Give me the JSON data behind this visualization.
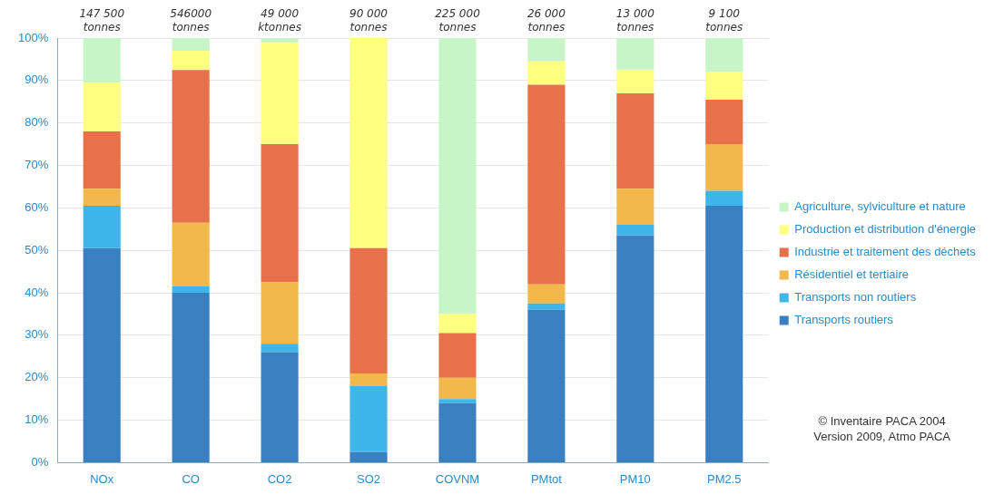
{
  "chart_data": {
    "type": "bar",
    "stacked": true,
    "categories": [
      "NOx",
      "CO",
      "CO2",
      "SO2",
      "COVNM",
      "PMtot",
      "PM10",
      "PM2.5"
    ],
    "series": [
      {
        "name": "Transports routiers",
        "color": "#3a7fc0",
        "values": [
          50.5,
          40,
          26,
          2.5,
          14,
          36,
          53.5,
          60.5
        ]
      },
      {
        "name": "Transports non routiers",
        "color": "#3fb6ea",
        "values": [
          10,
          1.5,
          2,
          15.5,
          1,
          1.5,
          2.5,
          3.5
        ]
      },
      {
        "name": "Résidentiel et tertiaire",
        "color": "#f2b84a",
        "values": [
          4,
          15,
          14.5,
          3,
          5,
          4.5,
          8.5,
          11
        ]
      },
      {
        "name": "Industrie et traitement des déchets",
        "color": "#e8704a",
        "values": [
          13.5,
          36,
          32.5,
          29.5,
          10.5,
          47,
          22.5,
          10.5
        ]
      },
      {
        "name": "Production et distribution d'énergie",
        "color": "#ffff80",
        "values": [
          11.5,
          4.5,
          24,
          49.5,
          4.5,
          5.5,
          5.5,
          6.5
        ]
      },
      {
        "name": "Agriculture, sylviculture et nature",
        "color": "#c8f5c8",
        "values": [
          10.5,
          3,
          1,
          0,
          65,
          5.5,
          7.5,
          8
        ]
      }
    ],
    "ylim": [
      0,
      100
    ],
    "yticks": [
      {
        "value": 0,
        "label": "0%"
      },
      {
        "value": 10,
        "label": "10%"
      },
      {
        "value": 20,
        "label": "20%"
      },
      {
        "value": 30,
        "label": "30%"
      },
      {
        "value": 40,
        "label": "40%"
      },
      {
        "value": 50,
        "label": "50%"
      },
      {
        "value": 60,
        "label": "60%"
      },
      {
        "value": 70,
        "label": "70%"
      },
      {
        "value": 80,
        "label": "80%"
      },
      {
        "value": 90,
        "label": "90%"
      },
      {
        "value": 100,
        "label": "100%"
      }
    ],
    "grid": "y",
    "legend": "right",
    "annotations": [
      {
        "text": "147 500 tonnes",
        "x": "NOx",
        "y": 100
      },
      {
        "text": "546000 tonnes",
        "x": "CO",
        "y": 100
      },
      {
        "text": "49 000 ktonnes",
        "x": "CO2",
        "y": 100
      },
      {
        "text": "90 000 tonnes",
        "x": "SO2",
        "y": 100
      },
      {
        "text": "225 000 tonnes",
        "x": "COVNM",
        "y": 100
      },
      {
        "text": "26 000 tonnes",
        "x": "PMtot",
        "y": 100
      },
      {
        "text": "13 000 tonnes",
        "x": "PM10",
        "y": 100
      },
      {
        "text": "9 100 tonnes",
        "x": "PM2.5",
        "y": 100
      },
      "© Inventaire PACA 2004",
      "Version 2009, Atmo PACA"
    ]
  }
}
